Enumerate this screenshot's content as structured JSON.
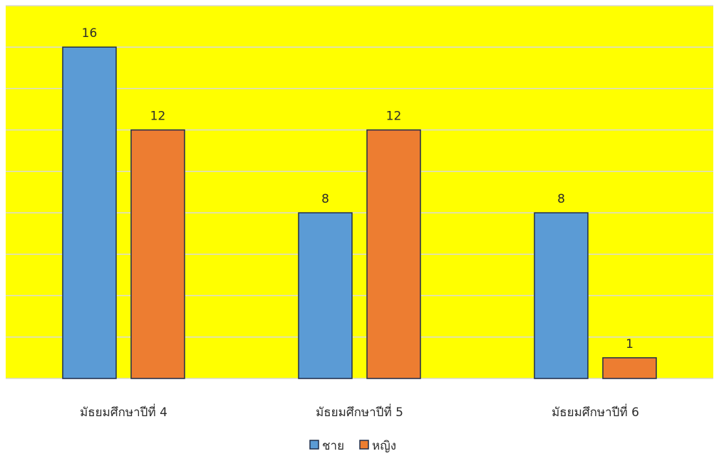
{
  "chart_data": {
    "type": "bar",
    "categories": [
      "มัธยมศึกษาปีที่ 4",
      "มัธยมศึกษาปีที่ 5",
      "มัธยมศึกษาปีที่ 6"
    ],
    "series": [
      {
        "name": "ชาย",
        "values": [
          16,
          8,
          8
        ],
        "color": "#5b9bd5"
      },
      {
        "name": "หญิง",
        "values": [
          12,
          12,
          1
        ],
        "color": "#ed7d31"
      }
    ],
    "data_labels": [
      "16",
      "12",
      "8",
      "12",
      "8",
      "1"
    ],
    "ylim": [
      0,
      18
    ],
    "grid": true,
    "legend_position": "bottom",
    "plot_background": "#ffff00",
    "gridline_color": "#d9d9d9",
    "bar_outline_color": "#1f2d4a"
  }
}
